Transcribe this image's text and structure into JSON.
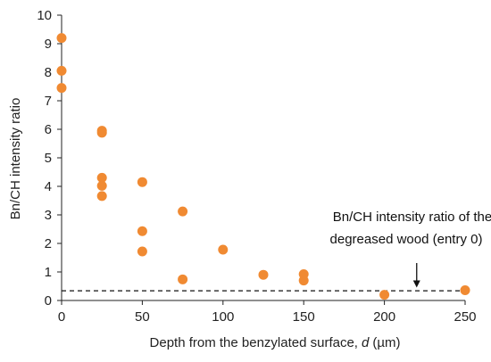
{
  "chart_data": {
    "type": "scatter",
    "xlabel_main": "Depth from the benzylated surface,",
    "xlabel_var": "d",
    "xlabel_unit": "(µm)",
    "ylabel": "Bn/CH intensity ratio",
    "xlim": [
      0,
      250
    ],
    "ylim": [
      0,
      10
    ],
    "x_ticks": [
      0,
      50,
      100,
      150,
      200,
      250
    ],
    "y_ticks": [
      0,
      1,
      2,
      3,
      4,
      5,
      6,
      7,
      8,
      9,
      10
    ],
    "grid": false,
    "marker_color": "#f08a32",
    "points": [
      {
        "x": 0,
        "y": 9.2
      },
      {
        "x": 0,
        "y": 8.05
      },
      {
        "x": 0,
        "y": 7.45
      },
      {
        "x": 25,
        "y": 5.95
      },
      {
        "x": 25,
        "y": 5.88
      },
      {
        "x": 25,
        "y": 4.3
      },
      {
        "x": 25,
        "y": 4.02
      },
      {
        "x": 25,
        "y": 3.66
      },
      {
        "x": 50,
        "y": 4.15
      },
      {
        "x": 50,
        "y": 2.43
      },
      {
        "x": 50,
        "y": 1.72
      },
      {
        "x": 75,
        "y": 3.12
      },
      {
        "x": 75,
        "y": 0.74
      },
      {
        "x": 100,
        "y": 1.78
      },
      {
        "x": 125,
        "y": 0.9
      },
      {
        "x": 150,
        "y": 0.92
      },
      {
        "x": 150,
        "y": 0.7
      },
      {
        "x": 200,
        "y": 0.2
      },
      {
        "x": 250,
        "y": 0.36
      }
    ],
    "reference_line": {
      "y": 0.34,
      "style": "dashed"
    },
    "annotation": {
      "lines": [
        "Bn/CH intensity ratio of the",
        "degreased wood (entry 0)"
      ],
      "arrow_x": 220,
      "arrow_from_y": 1.0,
      "arrow_to_y": 0.36
    }
  }
}
